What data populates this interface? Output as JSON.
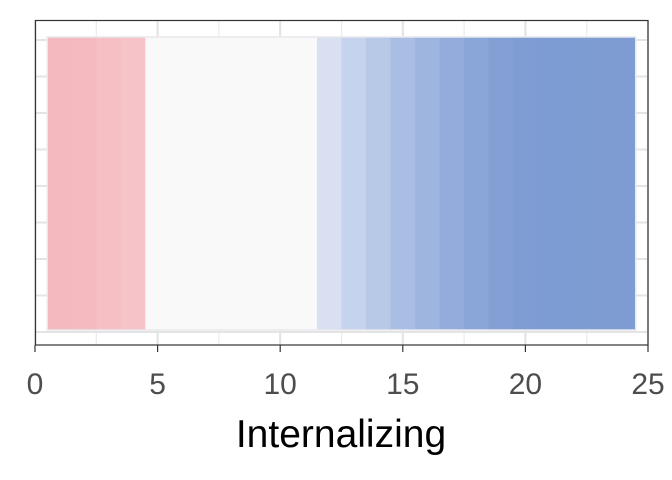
{
  "chart_data": {
    "type": "bar",
    "xlabel": "Internalizing",
    "ylabel": "",
    "xlim": [
      0,
      25
    ],
    "x_ticks": [
      0,
      5,
      10,
      15,
      20,
      25
    ],
    "x_tick_labels": [
      "0",
      "5",
      "10",
      "15",
      "20",
      "25"
    ],
    "grid": true,
    "y_axis_labels_shown": false,
    "tiles": [
      {
        "x": 1,
        "color": "#f4b9be"
      },
      {
        "x": 2,
        "color": "#f4babf"
      },
      {
        "x": 3,
        "color": "#f5bfc3"
      },
      {
        "x": 4,
        "color": "#f6c4c8"
      },
      {
        "x": 5,
        "color": "#f9f9f9"
      },
      {
        "x": 6,
        "color": "#f9f9f9"
      },
      {
        "x": 7,
        "color": "#f9f9f9"
      },
      {
        "x": 8,
        "color": "#f9f9f9"
      },
      {
        "x": 9,
        "color": "#f9f9f9"
      },
      {
        "x": 10,
        "color": "#f9f9f9"
      },
      {
        "x": 11,
        "color": "#f9f9f9"
      },
      {
        "x": 12,
        "color": "#d8e0f1"
      },
      {
        "x": 13,
        "color": "#c6d3ec"
      },
      {
        "x": 14,
        "color": "#b8c9e8"
      },
      {
        "x": 15,
        "color": "#aabee3"
      },
      {
        "x": 16,
        "color": "#9eb5df"
      },
      {
        "x": 17,
        "color": "#93acdb"
      },
      {
        "x": 18,
        "color": "#8aa6d8"
      },
      {
        "x": 19,
        "color": "#839fd4"
      },
      {
        "x": 20,
        "color": "#7f9dd3"
      },
      {
        "x": 21,
        "color": "#7d9cd3"
      },
      {
        "x": 22,
        "color": "#7d9cd2"
      },
      {
        "x": 23,
        "color": "#7e9cd2"
      },
      {
        "x": 24,
        "color": "#7e9cd2"
      }
    ],
    "tile_width": 1
  }
}
